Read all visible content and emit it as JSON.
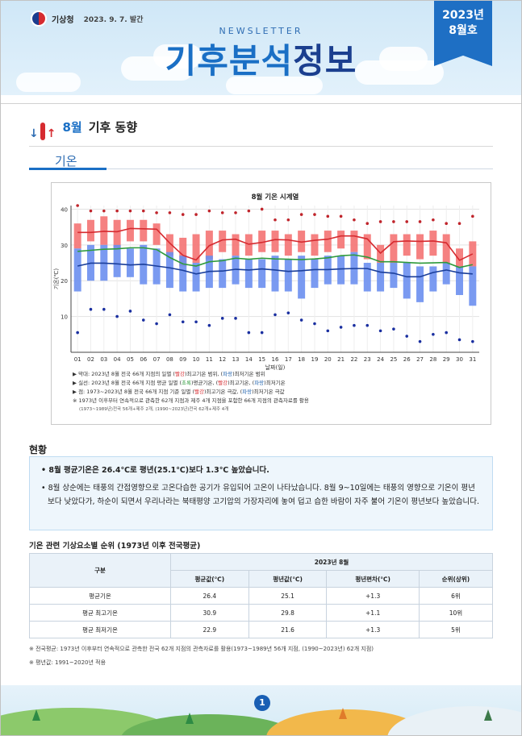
{
  "header": {
    "agency": "기상청",
    "date": "2023. 9. 7. 발간",
    "newsletter_label": "NEWSLETTER",
    "title_part1": "기후분석",
    "title_part2": "정보",
    "issue_year": "2023년",
    "issue_month": "8월호",
    "accent_color": "#1a6fc5"
  },
  "section": {
    "month": "8월",
    "title": "기후 동향",
    "icon": "thermometer-icon"
  },
  "subsection": {
    "title": "기온"
  },
  "chart_data": {
    "type": "bar",
    "title": "8월 기온 시계열",
    "xlabel": "날짜(일)",
    "ylabel": "기온(℃)",
    "ylim": [
      0,
      41
    ],
    "yticks": [
      10,
      20,
      30,
      40
    ],
    "categories": [
      "01",
      "02",
      "03",
      "04",
      "05",
      "06",
      "07",
      "08",
      "09",
      "10",
      "11",
      "12",
      "13",
      "14",
      "15",
      "16",
      "17",
      "18",
      "19",
      "20",
      "21",
      "22",
      "23",
      "24",
      "25",
      "26",
      "27",
      "28",
      "29",
      "30",
      "31"
    ],
    "series": [
      {
        "name": "최고기온 범위",
        "color": "#f47a7a",
        "low": [
          29,
          31,
          30,
          29,
          31,
          31,
          30,
          27,
          24,
          25,
          26,
          28,
          27,
          27,
          28,
          28,
          27,
          28,
          27,
          28,
          29,
          28,
          26,
          25,
          25,
          27,
          26,
          27,
          25,
          24,
          24
        ],
        "high": [
          36,
          37,
          38,
          37,
          37,
          37,
          36,
          33,
          32,
          33,
          34,
          34,
          33,
          33,
          34,
          34,
          33,
          34,
          33,
          34,
          34,
          34,
          33,
          30,
          33,
          33,
          33,
          34,
          33,
          29,
          31
        ]
      },
      {
        "name": "최저기온 범위",
        "color": "#6b8ff0",
        "low": [
          17,
          20,
          20,
          21,
          21,
          19,
          19,
          18,
          17,
          17,
          18,
          18,
          19,
          18,
          18,
          17,
          17,
          15,
          18,
          19,
          19,
          19,
          17,
          17,
          18,
          15,
          14,
          17,
          19,
          16,
          13
        ],
        "high": [
          29,
          30,
          30,
          30,
          29,
          30,
          29,
          28,
          27,
          25,
          27,
          26,
          27,
          26,
          26,
          27,
          26,
          27,
          26,
          27,
          27,
          28,
          25,
          25,
          25,
          25,
          24,
          24,
          25,
          24,
          24
        ]
      },
      {
        "name": "평균최고기온",
        "color": "#d62b30",
        "values": [
          33.5,
          33.5,
          33.8,
          33.7,
          34.6,
          34.5,
          34.4,
          30.5,
          27.1,
          25.8,
          29.8,
          31.4,
          31.6,
          30.2,
          30.7,
          31.5,
          31.4,
          30.8,
          31.3,
          31.6,
          32.5,
          32.5,
          31.7,
          27.7,
          30.9,
          31.1,
          31.0,
          31.1,
          30.6,
          25.7,
          27.5
        ]
      },
      {
        "name": "평균기온",
        "color": "#2e9a3b",
        "values": [
          28.2,
          28.5,
          28.8,
          28.9,
          29.2,
          29.2,
          28.7,
          26.5,
          24.7,
          24.1,
          25.3,
          25.6,
          26.3,
          26.0,
          26.3,
          26.1,
          26.0,
          25.9,
          26.1,
          26.4,
          27.0,
          27.2,
          26.6,
          25.3,
          25.3,
          25.1,
          24.9,
          25.0,
          25.1,
          23.7,
          24.5
        ]
      },
      {
        "name": "평균최저기온",
        "color": "#1a3e9a",
        "values": [
          24.1,
          24.9,
          24.9,
          24.7,
          24.4,
          24.6,
          24.1,
          23.6,
          22.9,
          21.9,
          22.6,
          22.7,
          23.2,
          23.0,
          23.3,
          23.0,
          22.6,
          22.8,
          23.1,
          23.1,
          23.3,
          23.4,
          23.4,
          22.4,
          22.1,
          21.1,
          21.1,
          22.3,
          23.0,
          22.2,
          21.9
        ]
      },
      {
        "name": "최고기온 극값",
        "color": "#c0242b",
        "values": [
          41,
          39.5,
          39.5,
          39.5,
          39.5,
          39.5,
          39,
          39,
          38.5,
          38.5,
          39.5,
          39,
          39,
          39.5,
          40,
          37,
          37,
          38.5,
          38.5,
          38,
          38,
          37,
          36,
          36.5,
          36.5,
          36.5,
          36.5,
          37,
          36,
          36,
          38
        ]
      },
      {
        "name": "최저기온 극값",
        "color": "#1a2fa0",
        "values": [
          5.5,
          12,
          12,
          10,
          11.5,
          9,
          8,
          10.5,
          8.5,
          8.5,
          7.5,
          9.5,
          9.5,
          5.5,
          5.5,
          10.5,
          11,
          9,
          8,
          6,
          7,
          7.5,
          7.5,
          6,
          6.5,
          4.5,
          3,
          5,
          5.5,
          3.5,
          3
        ]
      }
    ]
  },
  "chart_notes": {
    "note1_pre": "▶ 막대: 2023년 8월 전국 66개 지점의 일별 (",
    "note1_red": "빨강",
    "note1_mid": ")최고기온 범위, (",
    "note1_blue": "파랑",
    "note1_post": ")최저기온 범위",
    "note2_pre": "▶ 실선: 2023년 8월 전국 66개 지점 평균 일별 (",
    "note2_green": "초록",
    "note2_mid1": ")평균기온, (",
    "note2_red": "빨강",
    "note2_mid2": ")최고기온, (",
    "note2_blue": "파랑",
    "note2_post": ")최저기온",
    "note3_pre": "▶ 점: 1973~2023년 8월 전국 66개 지점 기준 일별 (",
    "note3_red": "빨강",
    "note3_mid": ")최고기온 극값, (",
    "note3_blue": "파랑",
    "note3_post": ")최저기온 극값",
    "note4": "※ 1973년 이후부터 연속적으로 관측한 62개 지점과 제주 4개 지점을 포함한 66개 지점의 관측자료를 활용",
    "note5": "(1973~1989년)전국 56개+제주 2개, (1990~2023년)전국 62개+제주 4개"
  },
  "status": {
    "heading": "현황",
    "p1": "• 8월 평균기온은 26.4℃로 평년(25.1℃)보다 1.3℃ 높았습니다.",
    "p2": "• 8월 상순에는 태풍의 간접영향으로 고온다습한 공기가 유입되어 고온이 나타났습니다. 8월 9~10일에는 태풍의 영향으로 기온이 평년보다 낮았다가, 하순이 되면서 우리나라는 북태평양 고기압의 가장자리에 놓여 덥고 습한 바람이 자주 불어 기온이 평년보다 높았습니다."
  },
  "table": {
    "title": "기온 관련 기상요소별 순위 (1973년 이후 전국평균)",
    "col_group": "구분",
    "col_period": "2023년 8월",
    "headers": [
      "평균값(℃)",
      "평년값(℃)",
      "평년편차(℃)",
      "순위(상위)"
    ],
    "rows": [
      [
        "평균기온",
        "26.4",
        "25.1",
        "+1.3",
        "6위"
      ],
      [
        "평균 최고기온",
        "30.9",
        "29.8",
        "+1.1",
        "10위"
      ],
      [
        "평균 최저기온",
        "22.9",
        "21.6",
        "+1.3",
        "5위"
      ]
    ]
  },
  "footnotes": {
    "f1": "※ 전국평균: 1973년 이후부터 연속적으로 관측한 전국 62개 지점의 관측자료를 활용(1973~1989년 56개 지점, (1990~2023년) 62개 지점)",
    "f2": "※ 평년값: 1991~2020년 적용"
  },
  "page_number": "1"
}
